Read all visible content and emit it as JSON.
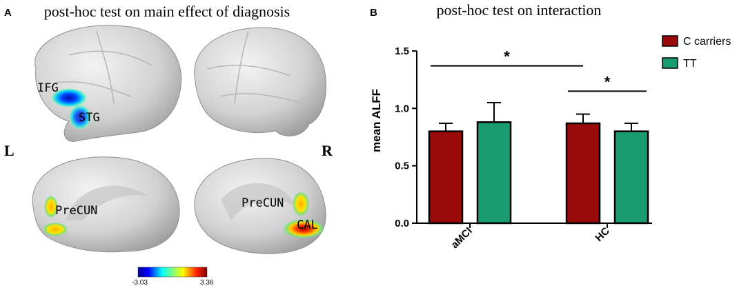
{
  "panel_a": {
    "letter": "A",
    "title": "post-hoc test on main effect of diagnosis",
    "left_label": "L",
    "right_label": "R",
    "regions": [
      "IFG",
      "STG",
      "PreCUN",
      "PreCUN",
      "CAL"
    ],
    "colorbar": {
      "min": "-3.03",
      "max": "3.36"
    }
  },
  "chart_data": {
    "letter": "B",
    "type": "bar",
    "title": "post-hoc test on interaction",
    "xlabel": "",
    "ylabel": "mean ALFF",
    "ylim": [
      0,
      1.5
    ],
    "yticks": [
      0.0,
      0.5,
      1.0,
      1.5
    ],
    "ytick_labels": [
      "0.0",
      "0.5",
      "1.0",
      "1.5"
    ],
    "categories": [
      "aMCI",
      "HC"
    ],
    "series": [
      {
        "name": "C carriers",
        "color": "#9b0a0a",
        "values": [
          0.8,
          0.87
        ],
        "errors": [
          0.07,
          0.08
        ]
      },
      {
        "name": "TT",
        "color": "#1a9b6f",
        "values": [
          0.88,
          0.8
        ],
        "errors": [
          0.17,
          0.07
        ]
      }
    ],
    "legend_position": "top-right",
    "significance": [
      {
        "label": "*",
        "from": {
          "category": 0,
          "series": 0
        },
        "to": {
          "category": 1,
          "series": 0
        },
        "y": 1.37
      },
      {
        "label": "*",
        "from": {
          "category": 1,
          "series": 0
        },
        "to": {
          "category": 1,
          "series": 1
        },
        "y": 1.15
      }
    ]
  }
}
